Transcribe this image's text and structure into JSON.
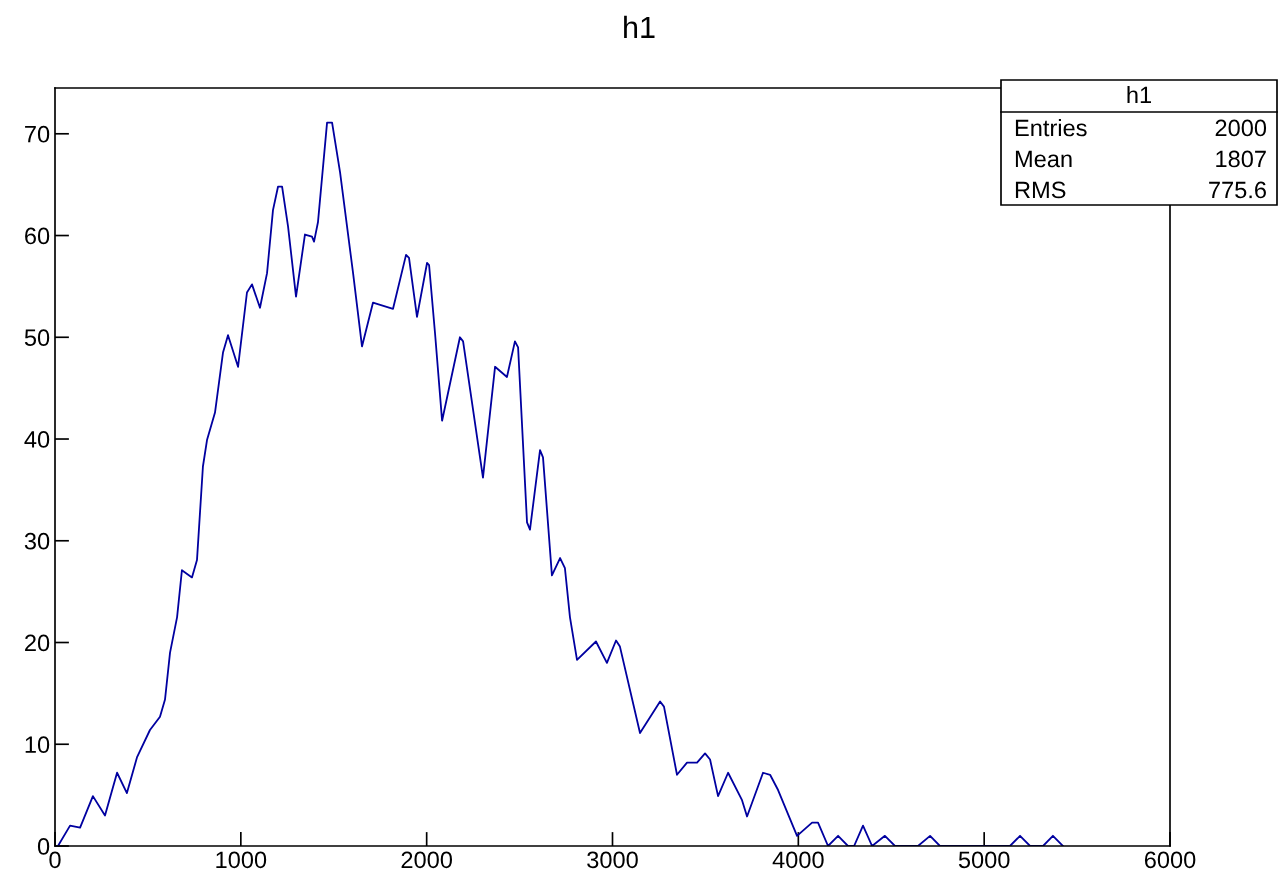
{
  "chart_data": {
    "type": "line",
    "title": "h1",
    "x": [
      16,
      81,
      135,
      204,
      269,
      334,
      387,
      441,
      511,
      565,
      592,
      619,
      657,
      683,
      737,
      764,
      796,
      818,
      861,
      904,
      931,
      985,
      1033,
      1060,
      1103,
      1141,
      1173,
      1200,
      1222,
      1254,
      1297,
      1345,
      1383,
      1394,
      1415,
      1464,
      1491,
      1534,
      1604,
      1652,
      1711,
      1819,
      1889,
      1905,
      1948,
      2002,
      2013,
      2045,
      2083,
      2179,
      2196,
      2303,
      2368,
      2432,
      2475,
      2492,
      2540,
      2556,
      2610,
      2626,
      2674,
      2718,
      2744,
      2771,
      2809,
      2911,
      2970,
      3019,
      3040,
      3148,
      3256,
      3277,
      3347,
      3401,
      3455,
      3498,
      3525,
      3568,
      3622,
      3697,
      3724,
      3810,
      3848,
      3891,
      3993,
      4074,
      4106,
      4160,
      4214,
      4267,
      4300,
      4348,
      4397,
      4466,
      4520,
      4644,
      4709,
      4762,
      5139,
      5193,
      5247,
      5317,
      5370,
      5424
    ],
    "series": [
      {
        "color": "#0000a0",
        "values": [
          0,
          2,
          1.8,
          4.9,
          3,
          7.2,
          5.2,
          8.7,
          11.4,
          12.7,
          14.4,
          19,
          22.5,
          27.1,
          26.4,
          28.1,
          37.3,
          39.9,
          42.6,
          48.5,
          50.2,
          47.1,
          54.4,
          55.2,
          52.9,
          56.3,
          62.5,
          64.8,
          64.8,
          60.9,
          54,
          60.1,
          59.9,
          59.4,
          61.3,
          71.1,
          71.1,
          66.2,
          56.3,
          49.1,
          53.4,
          52.8,
          58.1,
          57.8,
          52,
          57.3,
          57.1,
          50.4,
          41.8,
          50,
          49.6,
          36.2,
          47.1,
          46.1,
          49.6,
          49,
          31.8,
          31.1,
          38.9,
          38.2,
          26.6,
          28.3,
          27.3,
          22.5,
          18.3,
          20.1,
          18,
          20.2,
          19.6,
          11.1,
          14.2,
          13.7,
          7,
          8.2,
          8.2,
          9.1,
          8.5,
          4.9,
          7.2,
          4.5,
          2.9,
          7.2,
          7,
          5.5,
          1,
          2.3,
          2.3,
          0,
          1,
          0,
          0,
          2,
          0,
          1,
          0,
          0,
          1,
          0,
          0,
          1,
          0,
          0,
          1,
          0
        ]
      }
    ],
    "xlim": [
      0,
      6000
    ],
    "xticks": [
      0,
      1000,
      2000,
      3000,
      4000,
      5000,
      6000
    ],
    "ylim": [
      0,
      74.5
    ],
    "yticks": [
      0,
      10,
      20,
      30,
      40,
      50,
      60,
      70
    ],
    "grid": false,
    "marker": "none",
    "line_style": "solid",
    "annotations": [
      "h1",
      "Entries",
      "2000",
      "Mean",
      "1807",
      "RMS",
      "775.6"
    ]
  }
}
